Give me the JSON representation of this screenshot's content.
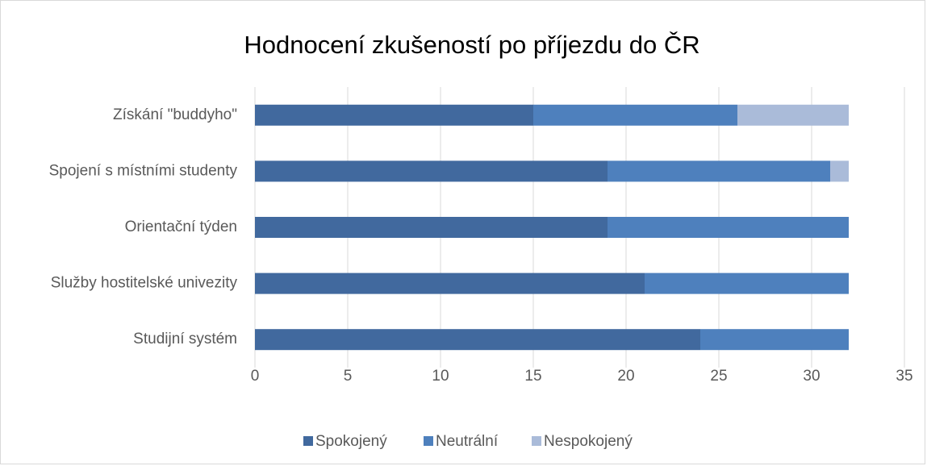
{
  "chart_data": {
    "type": "stacked_bar_horizontal",
    "title": "Hodnocení zkušeností po příjezdu do ČR",
    "categories": [
      "Získání \"buddyho\"",
      "Spojení s místními studenty",
      "Orientační týden",
      "Služby hostitelské univezity",
      "Studijní systém"
    ],
    "series": [
      {
        "name": "Spokojený",
        "color": "#41699e",
        "values": [
          15,
          19,
          19,
          21,
          24
        ]
      },
      {
        "name": "Neutrální",
        "color": "#4e80bd",
        "values": [
          11,
          12,
          13,
          11,
          8
        ]
      },
      {
        "name": "Nespokojený",
        "color": "#aabbd9",
        "values": [
          6,
          1,
          0,
          0,
          0
        ]
      }
    ],
    "xlim": [
      0,
      35
    ],
    "xticks": [
      0,
      5,
      10,
      15,
      20,
      25,
      30,
      35
    ],
    "grid": true,
    "legend": "bottom"
  }
}
